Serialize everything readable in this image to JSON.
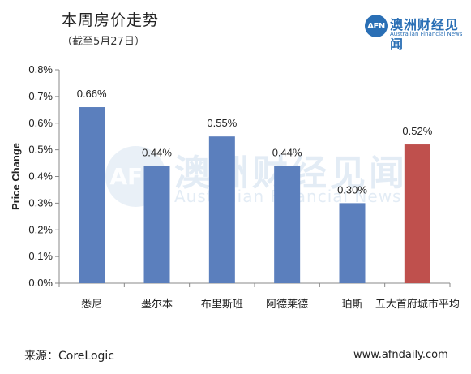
{
  "header": {
    "title": "本周房价走势",
    "subtitle": "（截至5月27日）"
  },
  "logo": {
    "mark": "AFN",
    "name": "澳洲财经见闻",
    "english": "Australian Financial News",
    "brand_color": "#2a6fb5"
  },
  "watermark": {
    "mark": "AFN",
    "name": "澳洲财经见闻",
    "english": "Australian Financial News"
  },
  "footer": {
    "source": "来源：CoreLogic",
    "website": "www.afndaily.com"
  },
  "chart_data": {
    "type": "bar",
    "title": "",
    "xlabel": "",
    "ylabel": "Price Change",
    "categories": [
      "悉尼",
      "墨尔本",
      "布里斯班",
      "阿德莱德",
      "珀斯",
      "五大首府城市平均"
    ],
    "values": [
      0.66,
      0.44,
      0.55,
      0.44,
      0.3,
      0.52
    ],
    "data_labels": [
      "0.66%",
      "0.44%",
      "0.55%",
      "0.44%",
      "0.30%",
      "0.52%"
    ],
    "ylim": [
      0,
      0.8
    ],
    "yticks": [
      "0.0%",
      "0.1%",
      "0.2%",
      "0.3%",
      "0.4%",
      "0.5%",
      "0.6%",
      "0.7%",
      "0.8%"
    ],
    "bar_colors": [
      "#5b7fbd",
      "#5b7fbd",
      "#5b7fbd",
      "#5b7fbd",
      "#5b7fbd",
      "#bf504d"
    ],
    "grid": false,
    "legend": "none"
  }
}
